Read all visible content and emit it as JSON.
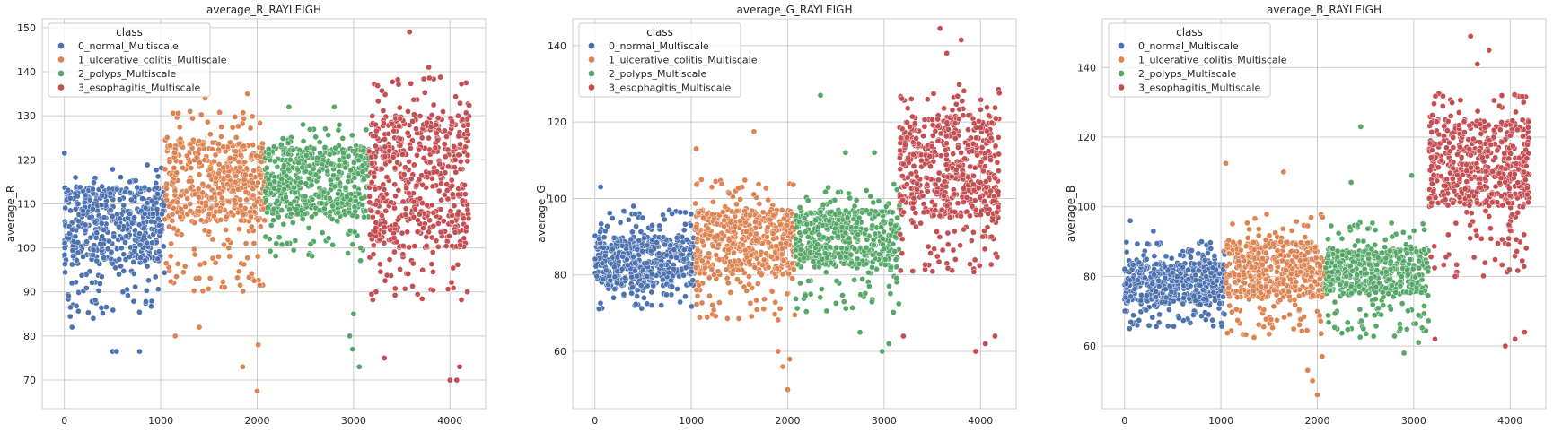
{
  "chart_data": [
    {
      "type": "scatter",
      "title": "average_R_RAYLEIGH",
      "xlabel": "",
      "ylabel": "average_R",
      "xlim": [
        -230,
        4370
      ],
      "ylim": [
        63.5,
        152
      ],
      "xticks": [
        0,
        1000,
        2000,
        3000,
        4000
      ],
      "yticks": [
        70,
        80,
        90,
        100,
        110,
        120,
        130,
        140,
        150
      ],
      "grid": true,
      "legend_position": "top-left",
      "legend_title": "class",
      "series": [
        {
          "name": "0_normal_Multiscale",
          "color": "#4c72b0",
          "x_range": [
            0,
            1040
          ],
          "y_core": [
            97,
            114
          ],
          "y_spread": [
            84,
            119
          ],
          "count": 520,
          "outliers": [
            [
              0,
              121.5
            ],
            [
              500,
              76.5
            ],
            [
              540,
              76.5
            ],
            [
              780,
              76.5
            ],
            [
              80,
              82
            ],
            [
              300,
              84
            ]
          ]
        },
        {
          "name": "1_ulcerative_colitis_Multiscale",
          "color": "#dd8452",
          "x_range": [
            1040,
            2080
          ],
          "y_core": [
            106,
            124
          ],
          "y_spread": [
            90,
            131
          ],
          "count": 520,
          "outliers": [
            [
              1460,
              134
            ],
            [
              1900,
              135
            ],
            [
              1150,
              80
            ],
            [
              1850,
              73
            ],
            [
              2000,
              67.5
            ],
            [
              1400,
              82
            ],
            [
              2010,
              78
            ]
          ]
        },
        {
          "name": "2_polyps_Multiscale",
          "color": "#55a868",
          "x_range": [
            2080,
            3160
          ],
          "y_core": [
            107,
            123
          ],
          "y_spread": [
            97,
            128
          ],
          "count": 520,
          "outliers": [
            [
              2330,
              132
            ],
            [
              2800,
              132
            ],
            [
              2990,
              77
            ],
            [
              3060,
              73
            ],
            [
              2960,
              80
            ],
            [
              3000,
              85
            ]
          ]
        },
        {
          "name": "3_esophagitis_Multiscale",
          "color": "#c44e52",
          "x_range": [
            3160,
            4200
          ],
          "y_core": [
            100,
            130
          ],
          "y_spread": [
            88,
            139
          ],
          "count": 560,
          "outliers": [
            [
              3580,
              149
            ],
            [
              3780,
              141
            ],
            [
              3320,
              75
            ],
            [
              4000,
              70
            ],
            [
              4070,
              70
            ],
            [
              4100,
              73
            ]
          ]
        }
      ]
    },
    {
      "type": "scatter",
      "title": "average_G_RAYLEIGH",
      "xlabel": "",
      "ylabel": "average_G",
      "xlim": [
        -230,
        4370
      ],
      "ylim": [
        45,
        147
      ],
      "xticks": [
        0,
        1000,
        2000,
        3000,
        4000
      ],
      "yticks": [
        60,
        80,
        100,
        120,
        140
      ],
      "grid": true,
      "legend_position": "top-left",
      "legend_title": "class",
      "series": [
        {
          "name": "0_normal_Multiscale",
          "color": "#4c72b0",
          "x_range": [
            0,
            1040
          ],
          "y_core": [
            77,
            90
          ],
          "y_spread": [
            71,
            97
          ],
          "count": 520,
          "outliers": [
            [
              60,
              103
            ],
            [
              400,
              98
            ],
            [
              800,
              96
            ]
          ]
        },
        {
          "name": "1_ulcerative_colitis_Multiscale",
          "color": "#dd8452",
          "x_range": [
            1040,
            2080
          ],
          "y_core": [
            80,
            97
          ],
          "y_spread": [
            68,
            105
          ],
          "count": 520,
          "outliers": [
            [
              1050,
              113
            ],
            [
              1650,
              117.5
            ],
            [
              2000,
              50
            ],
            [
              1950,
              56
            ],
            [
              1900,
              60
            ],
            [
              2020,
              58
            ]
          ]
        },
        {
          "name": "2_polyps_Multiscale",
          "color": "#55a868",
          "x_range": [
            2080,
            3160
          ],
          "y_core": [
            82,
            97
          ],
          "y_spread": [
            70,
            104
          ],
          "count": 520,
          "outliers": [
            [
              2340,
              127
            ],
            [
              2600,
              112
            ],
            [
              2900,
              112
            ],
            [
              2980,
              60
            ],
            [
              3050,
              62
            ],
            [
              2750,
              65
            ]
          ]
        },
        {
          "name": "3_esophagitis_Multiscale",
          "color": "#c44e52",
          "x_range": [
            3160,
            4200
          ],
          "y_core": [
            95,
            122
          ],
          "y_spread": [
            80,
            130
          ],
          "count": 560,
          "outliers": [
            [
              3580,
              144.5
            ],
            [
              3800,
              141.5
            ],
            [
              3650,
              138
            ],
            [
              3200,
              64
            ],
            [
              3950,
              60
            ],
            [
              4050,
              62
            ],
            [
              4150,
              64
            ]
          ]
        }
      ]
    },
    {
      "type": "scatter",
      "title": "average_B_RAYLEIGH",
      "xlabel": "",
      "ylabel": "average_B",
      "xlim": [
        -230,
        4370
      ],
      "ylim": [
        42,
        154
      ],
      "xticks": [
        0,
        1000,
        2000,
        3000,
        4000
      ],
      "yticks": [
        60,
        80,
        100,
        120,
        140
      ],
      "grid": true,
      "legend_position": "top-left",
      "legend_title": "class",
      "series": [
        {
          "name": "0_normal_Multiscale",
          "color": "#4c72b0",
          "x_range": [
            0,
            1040
          ],
          "y_core": [
            72,
            84
          ],
          "y_spread": [
            65,
            90
          ],
          "count": 520,
          "outliers": [
            [
              60,
              96
            ],
            [
              300,
              93
            ],
            [
              800,
              90
            ]
          ]
        },
        {
          "name": "1_ulcerative_colitis_Multiscale",
          "color": "#dd8452",
          "x_range": [
            1040,
            2080
          ],
          "y_core": [
            74,
            90
          ],
          "y_spread": [
            62,
            98
          ],
          "count": 520,
          "outliers": [
            [
              1050,
              112.5
            ],
            [
              1650,
              110
            ],
            [
              2000,
              46
            ],
            [
              1950,
              50
            ],
            [
              1900,
              53
            ],
            [
              2050,
              57
            ]
          ]
        },
        {
          "name": "2_polyps_Multiscale",
          "color": "#55a868",
          "x_range": [
            2080,
            3160
          ],
          "y_core": [
            75,
            88
          ],
          "y_spread": [
            62,
            96
          ],
          "count": 520,
          "outliers": [
            [
              2450,
              123
            ],
            [
              2350,
              107
            ],
            [
              2980,
              109
            ],
            [
              2900,
              58
            ],
            [
              3050,
              61
            ]
          ]
        },
        {
          "name": "3_esophagitis_Multiscale",
          "color": "#c44e52",
          "x_range": [
            3160,
            4200
          ],
          "y_core": [
            100,
            125
          ],
          "y_spread": [
            80,
            133
          ],
          "count": 560,
          "outliers": [
            [
              3590,
              149
            ],
            [
              3780,
              145
            ],
            [
              3660,
              141
            ],
            [
              3220,
              62
            ],
            [
              3950,
              60
            ],
            [
              4050,
              62
            ],
            [
              4150,
              64
            ]
          ]
        }
      ]
    }
  ]
}
